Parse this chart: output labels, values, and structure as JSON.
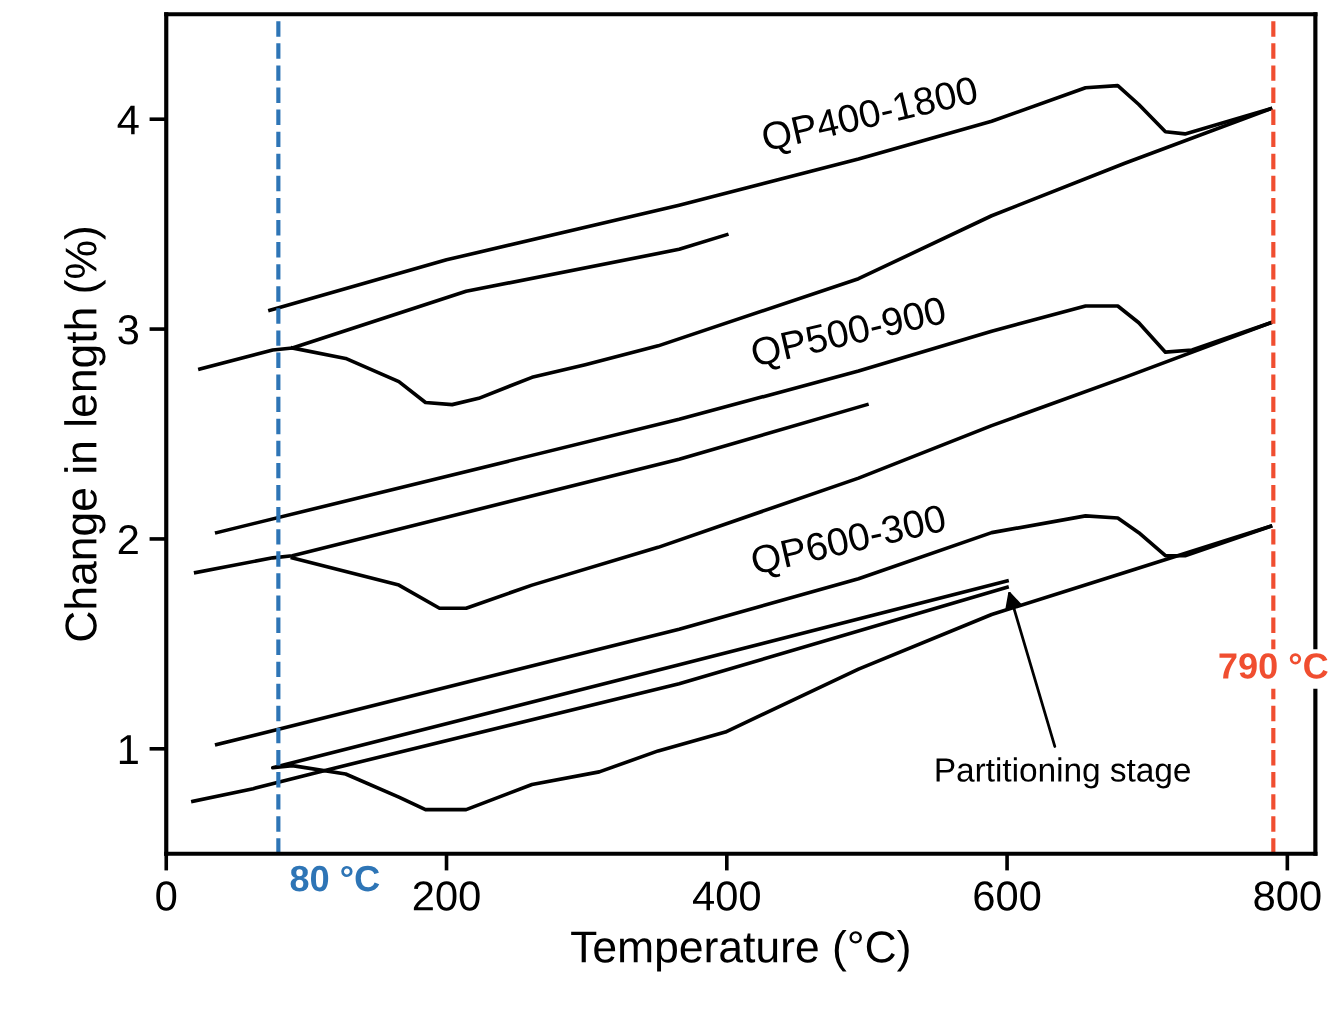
{
  "chart_data": {
    "type": "line",
    "xlabel": "Temperature (°C)",
    "ylabel": "Change in length (%)",
    "xlim": [
      0,
      820
    ],
    "ylim": [
      0.5,
      4.5
    ],
    "xticks": [
      0,
      200,
      400,
      600,
      800
    ],
    "yticks": [
      1,
      2,
      3,
      4
    ],
    "grid": false,
    "legend": false,
    "marker": "none",
    "line_style": "solid",
    "series": [
      {
        "name": "QP400-1800",
        "color": "#000000",
        "x": [
          74,
          200,
          366,
          494,
          589,
          656,
          679,
          694,
          713,
          727,
          788
        ],
        "values": [
          3.09,
          3.33,
          3.59,
          3.81,
          3.99,
          4.15,
          4.16,
          4.07,
          3.94,
          3.93,
          4.05
        ]
      },
      {
        "color": "#000000",
        "x": [
          788,
          684,
          589,
          494,
          351,
          299,
          261,
          223,
          204,
          185,
          166,
          128,
          90
        ],
        "values": [
          4.05,
          3.79,
          3.54,
          3.24,
          2.92,
          2.83,
          2.77,
          2.67,
          2.64,
          2.65,
          2.75,
          2.86,
          2.91
        ]
      },
      {
        "color": "#000000",
        "x": [
          24,
          76,
          90,
          214,
          366,
          400
        ],
        "values": [
          2.81,
          2.9,
          2.91,
          3.18,
          3.38,
          3.45
        ]
      },
      {
        "name": "QP500-900",
        "color": "#000000",
        "x": [
          36,
          366,
          494,
          589,
          656,
          679,
          694,
          713,
          732,
          788
        ],
        "values": [
          2.03,
          2.57,
          2.8,
          2.99,
          3.11,
          3.11,
          3.03,
          2.89,
          2.9,
          3.03
        ]
      },
      {
        "color": "#000000",
        "x": [
          788,
          684,
          589,
          494,
          351,
          261,
          214,
          195,
          166,
          90
        ],
        "values": [
          3.03,
          2.77,
          2.54,
          2.29,
          1.96,
          1.78,
          1.67,
          1.67,
          1.78,
          1.91
        ]
      },
      {
        "color": "#000000",
        "x": [
          21,
          76,
          90,
          366,
          500
        ],
        "values": [
          1.84,
          1.91,
          1.92,
          2.38,
          2.64
        ]
      },
      {
        "name": "QP600-300",
        "color": "#000000",
        "x": [
          36,
          366,
          494,
          589,
          656,
          679,
          694,
          713,
          727,
          788
        ],
        "values": [
          1.02,
          1.57,
          1.81,
          2.03,
          2.11,
          2.1,
          2.03,
          1.92,
          1.92,
          2.06
        ]
      },
      {
        "color": "#000000",
        "x": [
          788,
          684,
          589,
          494,
          399,
          351,
          309,
          261,
          214,
          185,
          166,
          128,
          90,
          76,
          366,
          600
        ],
        "values": [
          2.06,
          1.84,
          1.64,
          1.38,
          1.08,
          0.99,
          0.89,
          0.83,
          0.71,
          0.71,
          0.77,
          0.88,
          0.92,
          0.91,
          1.4,
          1.8
        ]
      },
      {
        "color": "#000000",
        "x": [
          19,
          62,
          109,
          366,
          600
        ],
        "values": [
          0.75,
          0.81,
          0.89,
          1.31,
          1.77
        ]
      }
    ],
    "ref_lines": [
      {
        "axis": "x",
        "value": 80,
        "label": "80 °C",
        "color": "#2e75b6",
        "line_style": "dashed"
      },
      {
        "axis": "x",
        "value": 790,
        "label": "790 °C",
        "color": "#f04e30",
        "line_style": "dashed"
      }
    ],
    "annotations": [
      {
        "text": "Partitioning stage",
        "x": 600,
        "y": 1.78
      }
    ]
  }
}
